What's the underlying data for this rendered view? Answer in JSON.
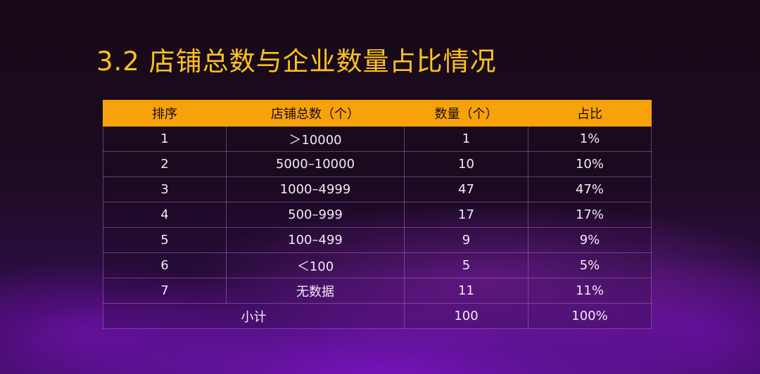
{
  "title": "3.2 店铺总数与企业数量占比情况",
  "table": {
    "headers": [
      "排序",
      "店铺总数（个）",
      "数量（个）",
      "占比"
    ],
    "rows": [
      [
        "1",
        "＞10000",
        "1",
        "1%"
      ],
      [
        "2",
        "5000–10000",
        "10",
        "10%"
      ],
      [
        "3",
        "1000–4999",
        "47",
        "47%"
      ],
      [
        "4",
        "500–999",
        "17",
        "17%"
      ],
      [
        "5",
        "100–499",
        "9",
        "9%"
      ],
      [
        "6",
        "＜100",
        "5",
        "5%"
      ],
      [
        "7",
        "无数据",
        "11",
        "11%"
      ]
    ],
    "total": {
      "label": "小计",
      "count": "100",
      "share": "100%"
    }
  },
  "colors": {
    "title": "#ffc21f",
    "header_bg": "#f7a20a",
    "background": "#1a0b1d",
    "glow": "#7a18c0"
  }
}
